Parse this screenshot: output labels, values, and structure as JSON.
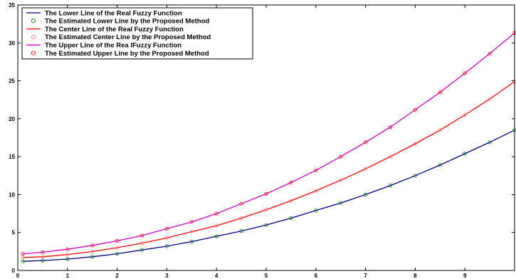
{
  "chart_data": {
    "type": "line",
    "title": "",
    "xlabel": "",
    "ylabel": "",
    "xlim": [
      0,
      10
    ],
    "ylim": [
      0,
      35
    ],
    "xticks": [
      0,
      1,
      2,
      3,
      4,
      5,
      6,
      7,
      8,
      9
    ],
    "yticks": [
      0,
      5,
      10,
      15,
      20,
      25,
      30,
      35
    ],
    "grid": false,
    "legend_position": "top-left",
    "x": [
      0.1,
      0.5,
      1.0,
      1.5,
      2.0,
      2.5,
      3.0,
      3.5,
      4.0,
      4.5,
      5.0,
      5.5,
      6.0,
      6.5,
      7.0,
      7.5,
      8.0,
      8.5,
      9.0,
      9.5,
      10.0
    ],
    "series": [
      {
        "name": "The Lower Line of the Real Fuzzy Function",
        "style": "line",
        "color": "#00008b",
        "values": [
          1.2,
          1.3,
          1.5,
          1.8,
          2.2,
          2.7,
          3.2,
          3.8,
          4.5,
          5.2,
          6.0,
          6.9,
          7.9,
          8.9,
          10.0,
          11.2,
          12.5,
          13.9,
          15.4,
          16.9,
          18.5
        ]
      },
      {
        "name": "The Estimated Lower Line by the Proposed Method",
        "style": "markers",
        "color": "#008000",
        "values": [
          1.2,
          1.3,
          1.5,
          1.8,
          2.2,
          2.7,
          3.2,
          3.8,
          4.5,
          5.2,
          6.0,
          6.9,
          7.9,
          8.9,
          10.0,
          11.2,
          12.5,
          13.9,
          15.4,
          16.9,
          18.5
        ]
      },
      {
        "name": "The Center Line of the Real Fuzzy Function",
        "style": "line",
        "color": "#ff0000",
        "values": [
          1.7,
          1.8,
          2.1,
          2.5,
          3.0,
          3.6,
          4.3,
          5.1,
          5.9,
          6.9,
          8.0,
          9.2,
          10.5,
          11.9,
          13.4,
          15.0,
          16.7,
          18.5,
          20.5,
          22.6,
          24.9
        ]
      },
      {
        "name": "The Estimated Center Line by the Proposed Method",
        "style": "markers",
        "color": "#ff8080",
        "values": [
          1.7,
          1.8,
          2.1,
          2.5,
          3.0,
          3.6,
          4.3,
          5.1,
          5.9,
          6.9,
          8.0,
          9.2,
          10.5,
          11.9,
          13.4,
          15.0,
          16.7,
          18.5,
          20.5,
          22.6,
          24.9
        ]
      },
      {
        "name": "The Upper Line of the Rea lFuzzy Function",
        "style": "line",
        "color": "#cc00cc",
        "values": [
          2.2,
          2.4,
          2.8,
          3.3,
          3.9,
          4.6,
          5.5,
          6.4,
          7.5,
          8.8,
          10.1,
          11.6,
          13.2,
          15.0,
          16.9,
          18.9,
          21.2,
          23.5,
          26.0,
          28.6,
          31.3
        ]
      },
      {
        "name": "The Estimated Upper Line by the Proposed Method",
        "style": "markers",
        "color": "#ff0000",
        "values": [
          2.2,
          2.4,
          2.8,
          3.3,
          3.9,
          4.6,
          5.5,
          6.4,
          7.5,
          8.8,
          10.1,
          11.6,
          13.2,
          15.0,
          16.9,
          18.9,
          21.2,
          23.5,
          26.0,
          28.6,
          31.3
        ]
      }
    ]
  }
}
